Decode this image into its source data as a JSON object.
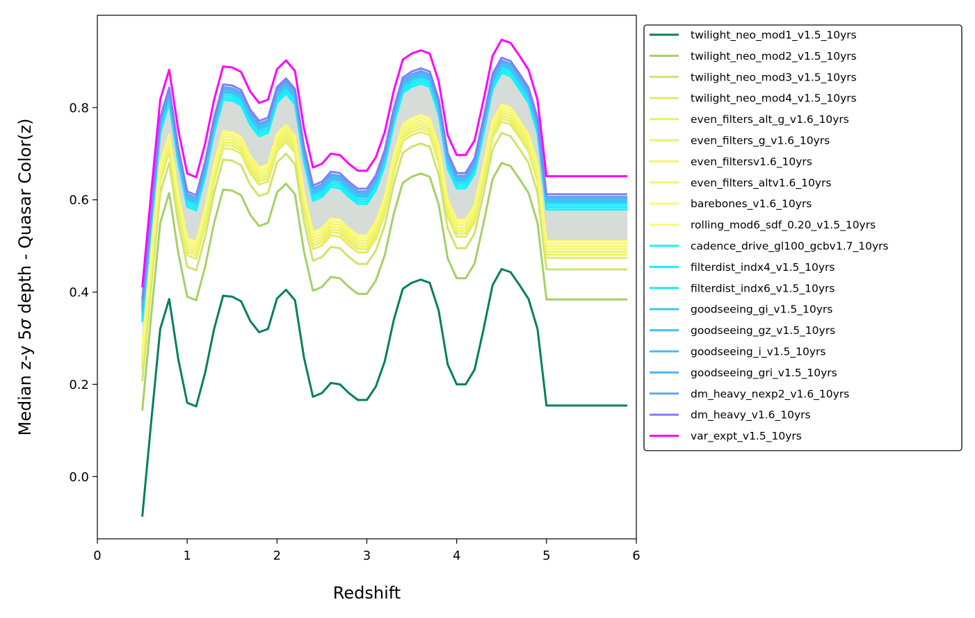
{
  "chart_data": {
    "type": "line",
    "title": "",
    "xlabel": "Redshift",
    "ylabel_parts": [
      "Median z-y 5",
      "σ",
      " depth - Quasar Color(z)"
    ],
    "xlim": [
      0,
      6
    ],
    "ylim": [
      -0.135,
      1.0
    ],
    "xticks": [
      0,
      1,
      2,
      3,
      4,
      5,
      6
    ],
    "xtick_labels": [
      "0",
      "1",
      "2",
      "3",
      "4",
      "5",
      "6"
    ],
    "yticks": [
      0.0,
      0.2,
      0.4,
      0.6,
      0.8
    ],
    "ytick_labels": [
      "0.0",
      "0.2",
      "0.4",
      "0.6",
      "0.8"
    ],
    "grid": false,
    "legend_position": "outside-right",
    "x": [
      0.5,
      0.6,
      0.7,
      0.8,
      0.9,
      1.0,
      1.1,
      1.2,
      1.3,
      1.4,
      1.5,
      1.6,
      1.7,
      1.8,
      1.9,
      2.0,
      2.1,
      2.2,
      2.3,
      2.4,
      2.5,
      2.6,
      2.7,
      2.8,
      2.9,
      3.0,
      3.1,
      3.2,
      3.3,
      3.4,
      3.5,
      3.6,
      3.7,
      3.8,
      3.9,
      4.0,
      4.1,
      4.2,
      4.3,
      4.4,
      4.5,
      4.6,
      4.7,
      4.8,
      4.9,
      5.0,
      5.1,
      5.2,
      5.3,
      5.4,
      5.5,
      5.6,
      5.7,
      5.8,
      5.9
    ],
    "band": {
      "color": "#d6dcd8",
      "upper_series": "cadence_drive_gl100_gcbv1.7_10yrs",
      "lower_series": "rolling_mod6_sdf_0.20_v1.5_10yrs"
    },
    "series": [
      {
        "name": "twilight_neo_mod1_v1.5_10yrs",
        "color": "#007f5f",
        "offset": 0.0
      },
      {
        "name": "twilight_neo_mod2_v1.5_10yrs",
        "color": "#a4d165",
        "offset": 0.23
      },
      {
        "name": "twilight_neo_mod3_v1.5_10yrs",
        "color": "#cfe36c",
        "offset": 0.295
      },
      {
        "name": "twilight_neo_mod4_v1.5_10yrs",
        "color": "#e3ec64",
        "offset": 0.32
      },
      {
        "name": "even_filters_alt_g_v1.6_10yrs",
        "color": "#eaf064",
        "offset": 0.327
      },
      {
        "name": "even_filters_g_v1.6_10yrs",
        "color": "#eef26a",
        "offset": 0.333
      },
      {
        "name": "even_filtersv1.6_10yrs",
        "color": "#f2f56c",
        "offset": 0.339
      },
      {
        "name": "even_filters_altv1.6_10yrs",
        "color": "#f5f66e",
        "offset": 0.345
      },
      {
        "name": "barebones_v1.6_10yrs",
        "color": "#f8f872",
        "offset": 0.351
      },
      {
        "name": "rolling_mod6_sdf_0.20_v1.5_10yrs",
        "color": "#fbfa76",
        "offset": 0.357
      },
      {
        "name": "cadence_drive_gl100_gcbv1.7_10yrs",
        "color": "#10f4ff",
        "offset": 0.425
      },
      {
        "name": "filterdist_indx4_v1.5_10yrs",
        "color": "#18eeff",
        "offset": 0.43
      },
      {
        "name": "filterdist_indx6_v1.5_10yrs",
        "color": "#20e8ff",
        "offset": 0.435
      },
      {
        "name": "goodseeing_gi_v1.5_10yrs",
        "color": "#38c8f8",
        "offset": 0.44
      },
      {
        "name": "goodseeing_gz_v1.5_10yrs",
        "color": "#40c0f8",
        "offset": 0.444
      },
      {
        "name": "goodseeing_i_v1.5_10yrs",
        "color": "#48bcf0",
        "offset": 0.448
      },
      {
        "name": "goodseeing_gri_v1.5_10yrs",
        "color": "#50b4f4",
        "offset": 0.452
      },
      {
        "name": "dm_heavy_nexp2_v1.6_10yrs",
        "color": "#66a0f4",
        "offset": 0.452
      },
      {
        "name": "dm_heavy_v1.6_10yrs",
        "color": "#8080f8",
        "offset": 0.458
      },
      {
        "name": "var_expt_v1.5_10yrs",
        "color": "#ff00ff",
        "offset": 0.497
      }
    ],
    "base_values": [
      -0.087,
      0.12,
      0.32,
      0.385,
      0.255,
      0.16,
      0.152,
      0.225,
      0.32,
      0.392,
      0.39,
      0.38,
      0.338,
      0.313,
      0.32,
      0.386,
      0.405,
      0.382,
      0.258,
      0.173,
      0.181,
      0.203,
      0.2,
      0.181,
      0.166,
      0.166,
      0.195,
      0.25,
      0.34,
      0.407,
      0.42,
      0.427,
      0.42,
      0.36,
      0.243,
      0.2,
      0.2,
      0.232,
      0.32,
      0.415,
      0.45,
      0.443,
      0.415,
      0.385,
      0.32,
      0.154,
      0.154,
      0.154,
      0.154,
      0.154,
      0.154,
      0.154,
      0.154,
      0.154,
      0.154
    ],
    "first_point_values": [
      -0.087,
      0.143,
      0.207,
      0.232,
      0.24,
      0.25,
      0.255,
      0.262,
      0.27,
      0.278,
      0.336,
      0.342,
      0.346,
      0.355,
      0.36,
      0.365,
      0.37,
      0.378,
      0.385,
      0.41
    ]
  }
}
